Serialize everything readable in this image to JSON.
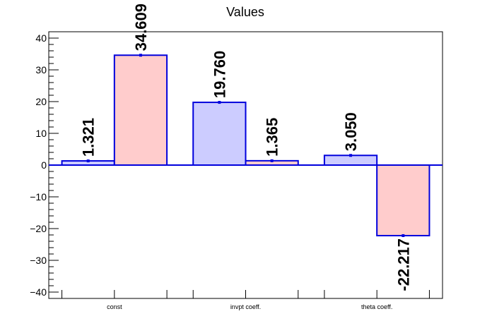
{
  "chart_data": {
    "type": "bar",
    "title": "Values",
    "xlabel": "",
    "ylabel": "",
    "categories": [
      "const",
      "invpt coeff.",
      "theta coeff."
    ],
    "series": [
      {
        "values": [
          1.321,
          19.76,
          3.05
        ],
        "labels": [
          "1.321",
          "19.760",
          "3.050"
        ],
        "fill": "#ccccff",
        "stroke": "#0000dd"
      },
      {
        "values": [
          34.609,
          1.365,
          -22.217
        ],
        "labels": [
          "34.609",
          "1.365",
          "-22.217"
        ],
        "fill": "#ffcccc",
        "stroke": "#0000dd"
      }
    ],
    "ylim": [
      -42,
      42
    ],
    "yticks": [
      -40,
      -30,
      -20,
      -10,
      0,
      10,
      20,
      30,
      40
    ],
    "ytick_labels": [
      "−40",
      "−30",
      "−20",
      "−10",
      "0",
      "10",
      "20",
      "30",
      "40"
    ],
    "grid": false,
    "legend": "none",
    "colors": {
      "frame": "#000000",
      "zero_line": "#0000dd",
      "error_bar": "#0000dd"
    }
  }
}
